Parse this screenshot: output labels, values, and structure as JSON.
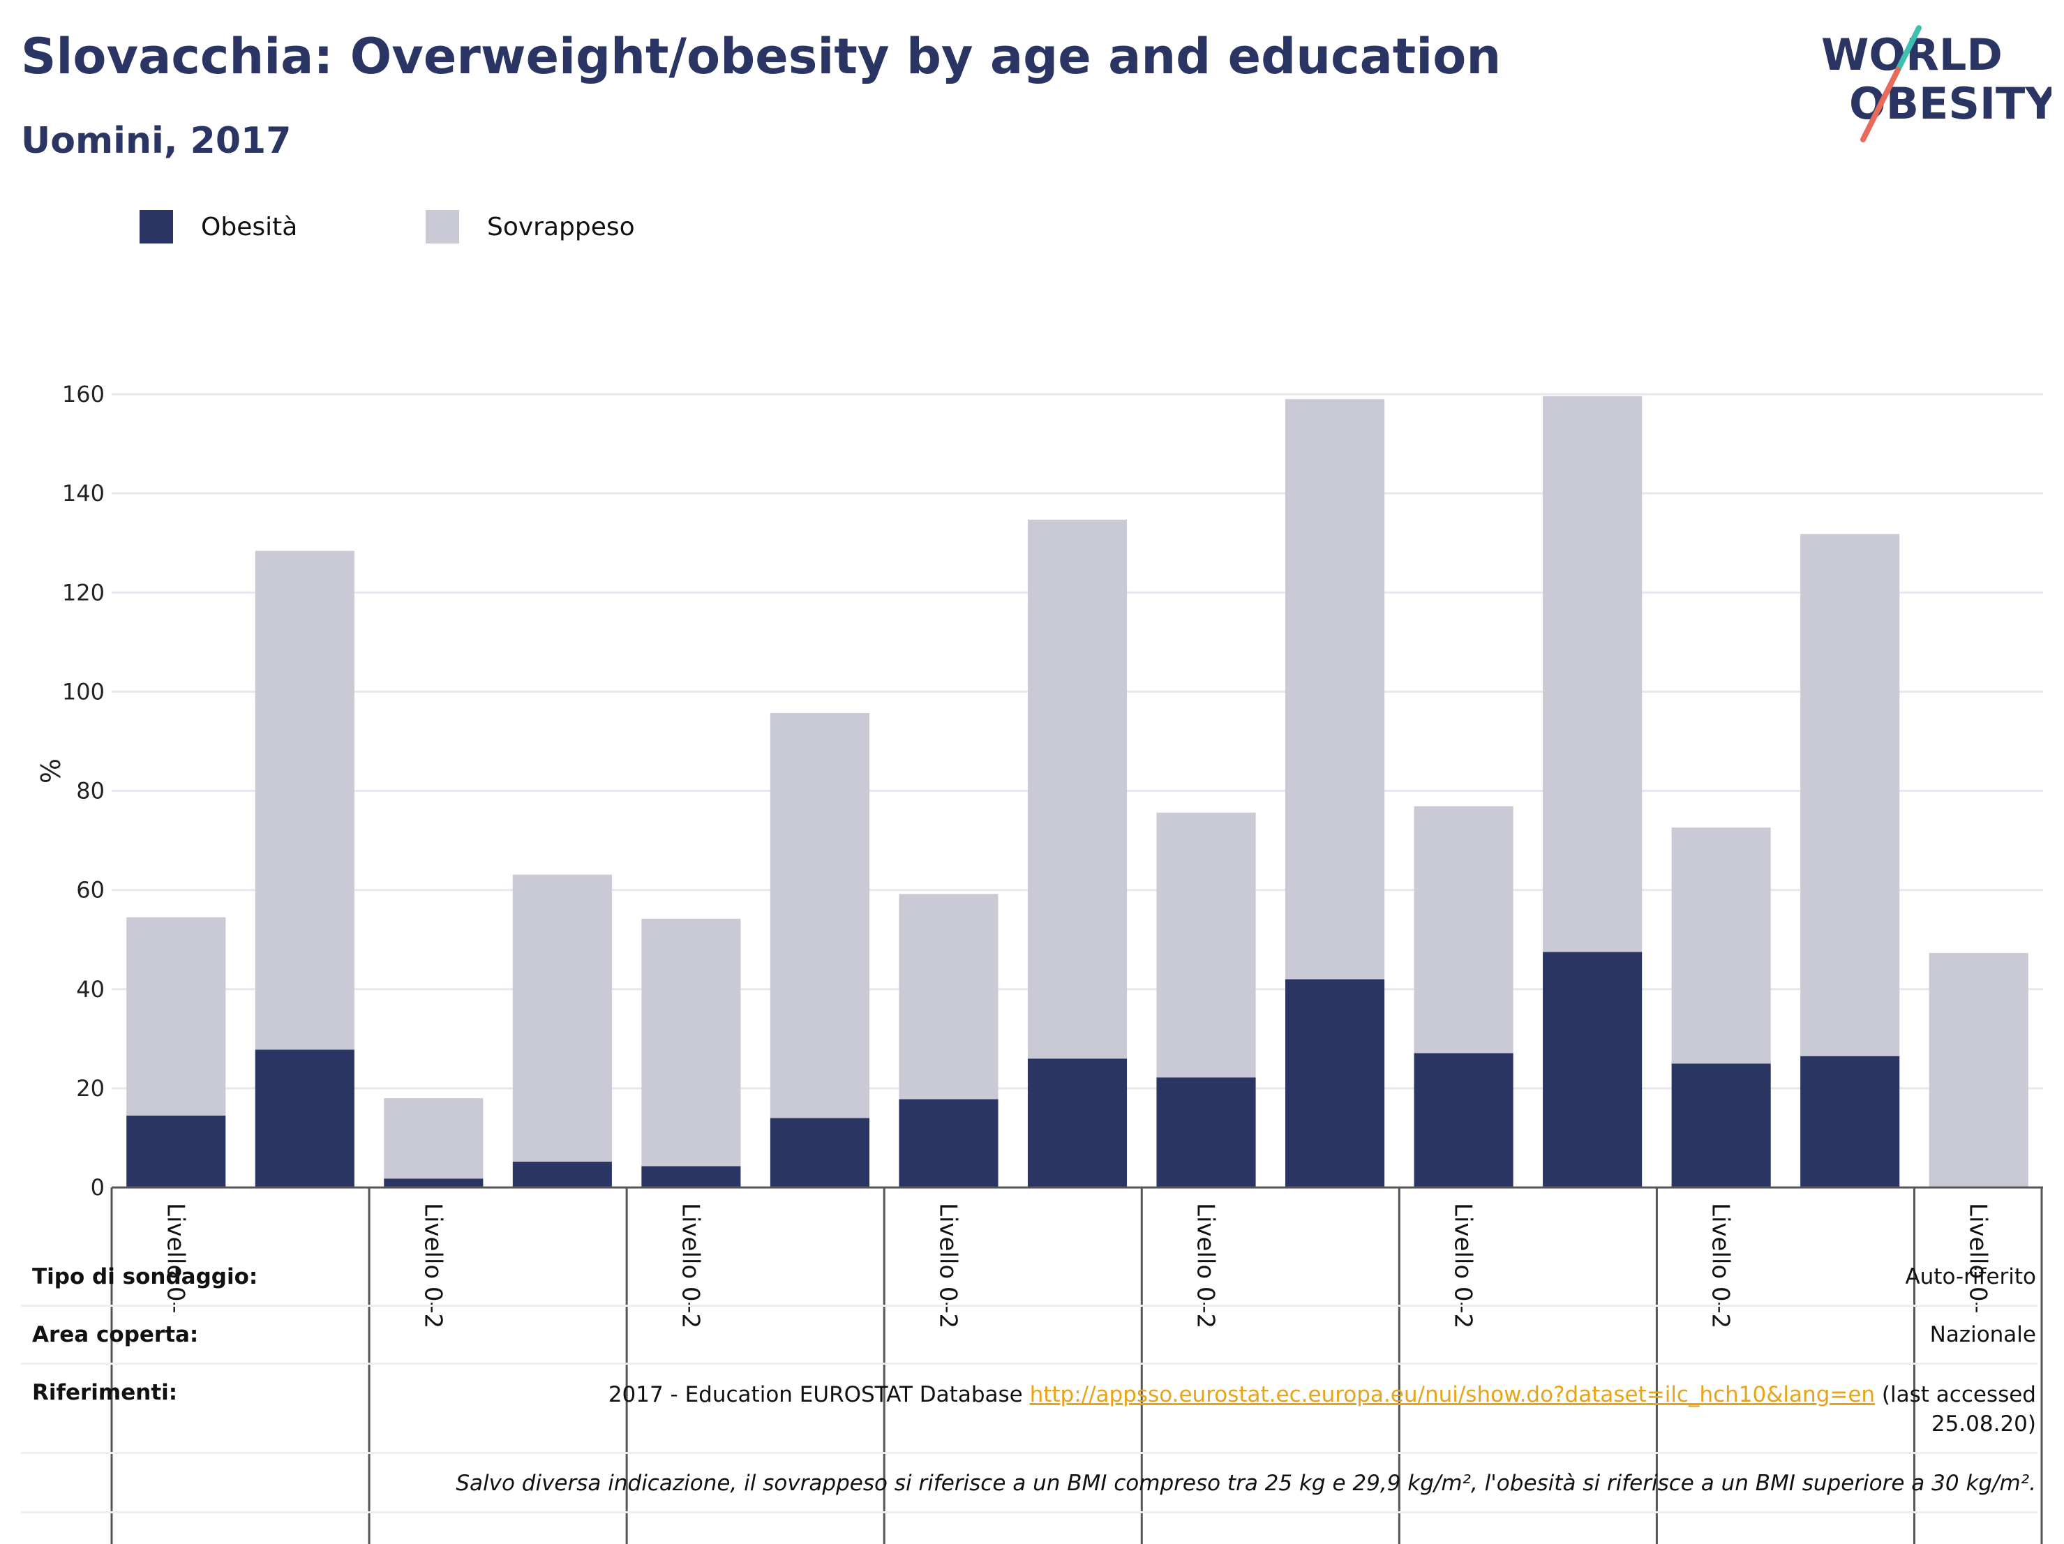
{
  "header": {
    "title": "Slovacchia: Overweight/obesity by age and education",
    "subtitle": "Uomini, 2017"
  },
  "logo": {
    "line1": "WORLD",
    "line2": "OBESITY"
  },
  "colors": {
    "obesity": "#2a3563",
    "overweight": "#c9cad6",
    "accent_teal": "#3fbfb0",
    "accent_coral": "#e86a5b",
    "link": "#e8a317"
  },
  "chart_data": {
    "type": "bar",
    "stacked": true,
    "ylabel": "%",
    "ylim": [
      0,
      160
    ],
    "yticks": [
      0,
      20,
      40,
      60,
      80,
      100,
      120,
      140,
      160
    ],
    "grid": true,
    "legend_position": "top-left",
    "series": [
      {
        "name": "Obesità",
        "values": [
          14.5,
          27.8,
          1.8,
          5.2,
          4.3,
          14,
          17.8,
          26,
          22.2,
          42,
          27.1,
          47.5,
          25,
          26.5,
          0
        ]
      },
      {
        "name": "Sovrappeso",
        "values": [
          40,
          100.6,
          16.2,
          57.9,
          49.9,
          81.7,
          41.4,
          108.7,
          53.4,
          117,
          49.8,
          112.1,
          47.6,
          105.3,
          47.3
        ]
      }
    ],
    "group_labels": [
      "Livello 0–",
      "Livello 0–2",
      "Livello 0–2",
      "Livello 0–2",
      "Livello 0–2",
      "Livello 0–2",
      "Livello 0–2",
      "Livello 0–"
    ]
  },
  "info": {
    "survey_label": "Tipo di sondaggio:",
    "survey_value": "Auto-riferito",
    "area_label": "Area coperta:",
    "area_value": "Nazionale",
    "ref_label": "Riferimenti:",
    "ref_prefix": "2017 - Education EUROSTAT Database ",
    "ref_link": "http://appsso.eurostat.ec.europa.eu/nui/show.do?dataset=ilc_hch10&lang=en",
    "ref_suffix": " (last accessed",
    "ref_date": "25.08.20)",
    "note": "Salvo diversa indicazione, il sovrappeso si riferisce a un BMI compreso tra 25 kg e 29,9 kg/m², l'obesità si riferisce a un BMI superiore a 30 kg/m²."
  }
}
